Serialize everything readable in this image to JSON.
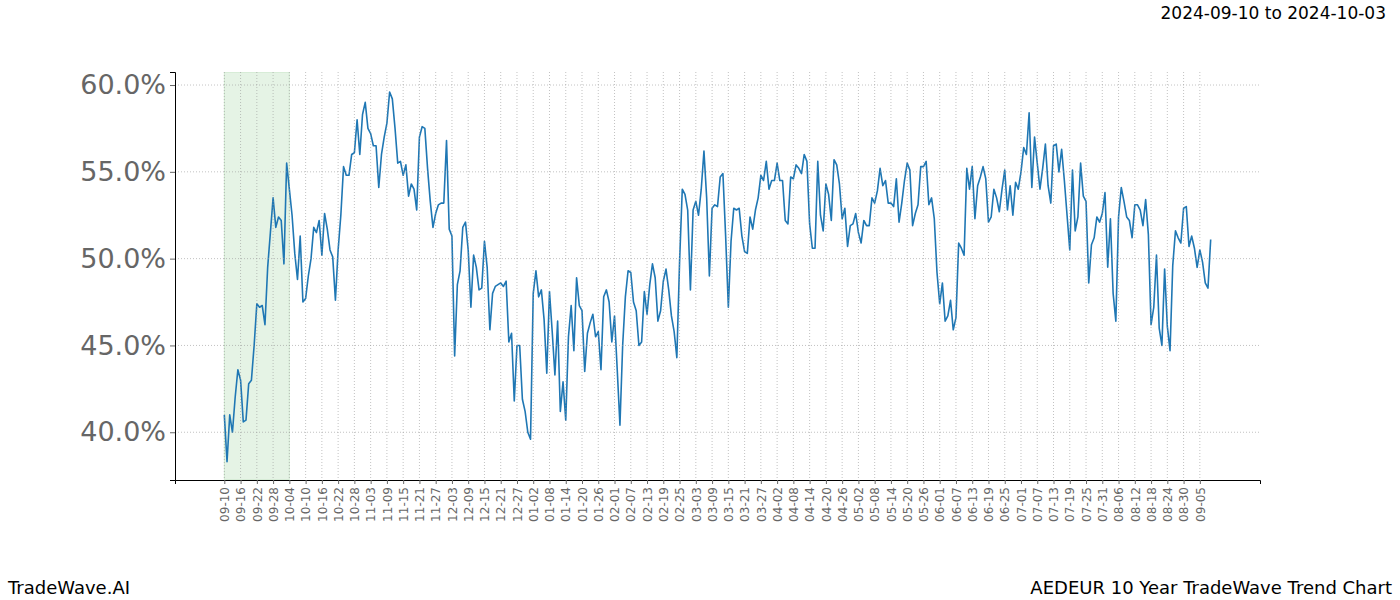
{
  "chart_data": {
    "type": "line",
    "title": "2024-09-10 to 2024-10-03",
    "footer_left": "TradeWave.AI",
    "footer_right": "AEDEUR 10 Year TradeWave Trend Chart",
    "color": "#1f77b4",
    "grid": true,
    "shaded_range": [
      "09-10",
      "10-04"
    ],
    "ylim": [
      37.25,
      60.75
    ],
    "yticks": [
      {
        "value": 40,
        "label": "40.0%"
      },
      {
        "value": 45,
        "label": "45.0%"
      },
      {
        "value": 50,
        "label": "50.0%"
      },
      {
        "value": 55,
        "label": "55.0%"
      },
      {
        "value": 60,
        "label": "60.0%"
      }
    ],
    "categories": [
      "09-10",
      null,
      null,
      null,
      null,
      null,
      "09-16",
      null,
      null,
      null,
      null,
      null,
      "09-22",
      null,
      null,
      null,
      null,
      null,
      "09-28",
      null,
      null,
      null,
      null,
      null,
      "10-04",
      null,
      null,
      null,
      null,
      null,
      "10-10",
      null,
      null,
      null,
      null,
      null,
      "10-16",
      null,
      null,
      null,
      null,
      null,
      "10-22",
      null,
      null,
      null,
      null,
      null,
      "10-28",
      null,
      null,
      null,
      null,
      null,
      "11-03",
      null,
      null,
      null,
      null,
      null,
      "11-09",
      null,
      null,
      null,
      null,
      null,
      "11-15",
      null,
      null,
      null,
      null,
      null,
      "11-21",
      null,
      null,
      null,
      null,
      null,
      "11-27",
      null,
      null,
      null,
      null,
      null,
      "12-03",
      null,
      null,
      null,
      null,
      null,
      "12-09",
      null,
      null,
      null,
      null,
      null,
      "12-15",
      null,
      null,
      null,
      null,
      null,
      "12-21",
      null,
      null,
      null,
      null,
      null,
      "12-27",
      null,
      null,
      null,
      null,
      null,
      "01-02",
      null,
      null,
      null,
      null,
      null,
      "01-08",
      null,
      null,
      null,
      null,
      null,
      "01-14",
      null,
      null,
      null,
      null,
      null,
      "01-20",
      null,
      null,
      null,
      null,
      null,
      "01-26",
      null,
      null,
      null,
      null,
      null,
      "02-01",
      null,
      null,
      null,
      null,
      null,
      "02-07",
      null,
      null,
      null,
      null,
      null,
      "02-13",
      null,
      null,
      null,
      null,
      null,
      "02-19",
      null,
      null,
      null,
      null,
      null,
      "02-25",
      null,
      null,
      null,
      null,
      null,
      "03-03",
      null,
      null,
      null,
      null,
      null,
      "03-09",
      null,
      null,
      null,
      null,
      null,
      "03-15",
      null,
      null,
      null,
      null,
      null,
      "03-21",
      null,
      null,
      null,
      null,
      null,
      "03-27",
      null,
      null,
      null,
      null,
      null,
      "04-02",
      null,
      null,
      null,
      null,
      null,
      "04-08",
      null,
      null,
      null,
      null,
      null,
      "04-14",
      null,
      null,
      null,
      null,
      null,
      "04-20",
      null,
      null,
      null,
      null,
      null,
      "04-26",
      null,
      null,
      null,
      null,
      null,
      "05-02",
      null,
      null,
      null,
      null,
      null,
      "05-08",
      null,
      null,
      null,
      null,
      null,
      "05-14",
      null,
      null,
      null,
      null,
      null,
      "05-20",
      null,
      null,
      null,
      null,
      null,
      "05-26",
      null,
      null,
      null,
      null,
      null,
      "06-01",
      null,
      null,
      null,
      null,
      null,
      "06-07",
      null,
      null,
      null,
      null,
      null,
      "06-13",
      null,
      null,
      null,
      null,
      null,
      "06-19",
      null,
      null,
      null,
      null,
      null,
      "06-25",
      null,
      null,
      null,
      null,
      null,
      "07-01",
      null,
      null,
      null,
      null,
      null,
      "07-07",
      null,
      null,
      null,
      null,
      null,
      "07-13",
      null,
      null,
      null,
      null,
      null,
      "07-19",
      null,
      null,
      null,
      null,
      null,
      "07-25",
      null,
      null,
      null,
      null,
      null,
      "07-31",
      null,
      null,
      null,
      null,
      null,
      "08-06",
      null,
      null,
      null,
      null,
      null,
      "08-12",
      null,
      null,
      null,
      null,
      null,
      "08-18",
      null,
      null,
      null,
      null,
      null,
      "08-24",
      null,
      null,
      null,
      null,
      null,
      "08-30",
      null,
      null,
      null,
      null,
      null,
      "09-05",
      null,
      null,
      null,
      null
    ],
    "values": [
      41,
      38.3,
      41,
      40,
      42,
      43.6,
      43,
      40.6,
      40.7,
      42.8,
      43,
      45,
      47.4,
      47.2,
      47.3,
      46.2,
      49.5,
      51.5,
      53.5,
      51.8,
      52.4,
      52.2,
      49.7,
      55.5,
      54,
      52.5,
      50.3,
      48.8,
      51.3,
      47.5,
      47.7,
      49,
      50,
      51.8,
      51.5,
      52.2,
      50.2,
      52.6,
      51.7,
      50.5,
      50.1,
      47.6,
      50.5,
      52.5,
      55.3,
      54.8,
      54.8,
      56,
      56.1,
      58,
      56,
      58.3,
      59,
      57.5,
      57.2,
      56.5,
      56.5,
      54.1,
      56,
      57,
      57.8,
      59.6,
      59.2,
      57.5,
      55.5,
      55.6,
      54.8,
      55.4,
      53.6,
      54.3,
      54,
      52.8,
      57,
      57.6,
      57.5,
      55.2,
      53.3,
      51.8,
      52.6,
      53.1,
      53.2,
      53.2,
      56.8,
      51.7,
      51.3,
      44.4,
      48.5,
      49.3,
      51.8,
      52.1,
      50.5,
      47.2,
      50.2,
      49.5,
      48.2,
      48.3,
      51,
      49.5,
      45.9,
      48,
      48.4,
      48.5,
      48.6,
      48.4,
      48.7,
      45.2,
      45.7,
      41.8,
      45,
      45,
      41.9,
      41.2,
      40,
      39.6,
      48,
      49.3,
      47.8,
      48.2,
      46.5,
      43.4,
      48.1,
      45.8,
      43.3,
      46.4,
      41.2,
      42.9,
      40.7,
      45.5,
      47.3,
      44.7,
      48.9,
      47.3,
      47,
      43.5,
      45.7,
      46.3,
      46.8,
      45.5,
      45.8,
      43.6,
      47.8,
      48.2,
      47.5,
      45.2,
      46.7,
      43.6,
      40.4,
      45,
      47.8,
      49.3,
      49.2,
      47.5,
      47,
      45,
      45.2,
      48.1,
      46.8,
      48.5,
      49.7,
      48.9,
      46.4,
      47,
      48.7,
      49.4,
      48.2,
      46.7,
      45.8,
      44.3,
      49.8,
      54,
      53.7,
      52.8,
      48.2,
      52.8,
      53.3,
      52.5,
      54,
      56.2,
      53.5,
      49,
      52.9,
      53.1,
      53,
      54.7,
      54.9,
      51.3,
      47.2,
      51,
      52.9,
      52.8,
      52.9,
      51.3,
      50.4,
      50.3,
      52.4,
      51.7,
      52.8,
      53.5,
      54.8,
      54.5,
      55.6,
      54,
      54.5,
      54.5,
      55.5,
      54.5,
      54.5,
      52.2,
      52,
      54.7,
      54.6,
      55.4,
      55.2,
      54.9,
      56,
      55.6,
      52,
      50.6,
      50.6,
      55.6,
      52.5,
      51.6,
      54.3,
      53.7,
      52.2,
      55.7,
      55.4,
      54.3,
      52.3,
      52.9,
      50.7,
      51.9,
      52,
      52.6,
      51.5,
      50.9,
      52.2,
      51.9,
      51.9,
      53.5,
      53.2,
      53.9,
      55.2,
      54.2,
      54.5,
      53.2,
      53.2,
      53,
      54.6,
      52.1,
      53.2,
      54.5,
      55.5,
      55.1,
      51.9,
      52.6,
      53.1,
      55.3,
      55.3,
      55.6,
      53.1,
      53.5,
      52.3,
      49.2,
      47.4,
      48.6,
      46.4,
      46.7,
      47.6,
      45.9,
      46.6,
      50.9,
      50.6,
      50.2,
      55.2,
      54,
      55.3,
      52.3,
      54.2,
      54.7,
      55.3,
      54.6,
      52.1,
      52.4,
      54,
      53.5,
      52.7,
      54,
      55.1,
      52.8,
      54.2,
      52.5,
      54.4,
      54,
      55,
      56.4,
      56,
      58.4,
      54.1,
      57,
      55.5,
      54,
      55.2,
      56.6,
      54.2,
      53.2,
      56.5,
      56.6,
      55,
      56.3,
      54.5,
      52.5,
      50.5,
      55.1,
      51.6,
      52.4,
      55.5,
      53.6,
      53.3,
      48.6,
      50.8,
      51.2,
      52.4,
      52.1,
      52.6,
      53.8,
      49.5,
      52.3,
      48,
      46.4,
      52.4,
      54.1,
      53.3,
      52.4,
      52.2,
      51.2,
      53.1,
      53.1,
      52.8,
      51.9,
      53.4,
      51.4,
      46.2,
      47.2,
      50.2,
      46,
      45,
      49.4,
      46.1,
      44.7,
      49.6,
      51.6,
      51.2,
      50.9,
      52.9,
      53,
      50.7,
      51.3,
      50.6,
      49.5,
      50.5,
      49.8,
      48.6,
      48.3,
      51.1
    ]
  }
}
